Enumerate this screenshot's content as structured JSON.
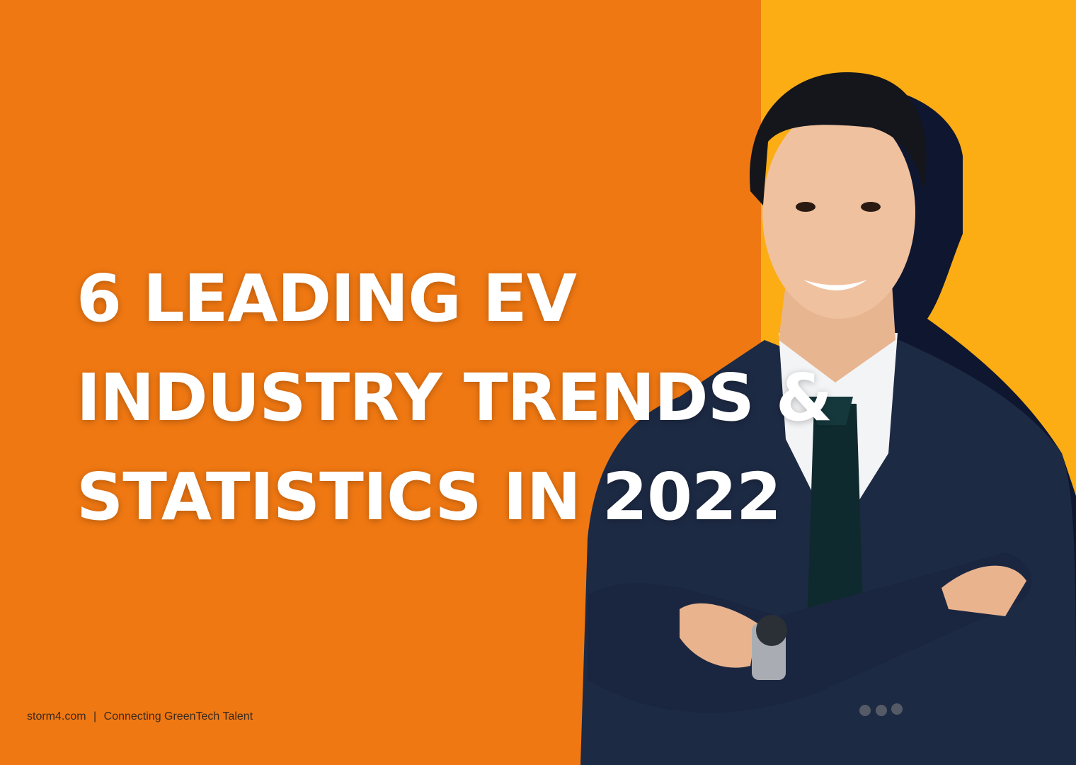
{
  "title_lines": [
    "6 LEADING EV",
    "INDUSTRY TRENDS &",
    "STATISTICS IN 2022"
  ],
  "footer": {
    "site": "storm4.com",
    "separator": "|",
    "tagline": "Connecting GreenTech Talent"
  }
}
